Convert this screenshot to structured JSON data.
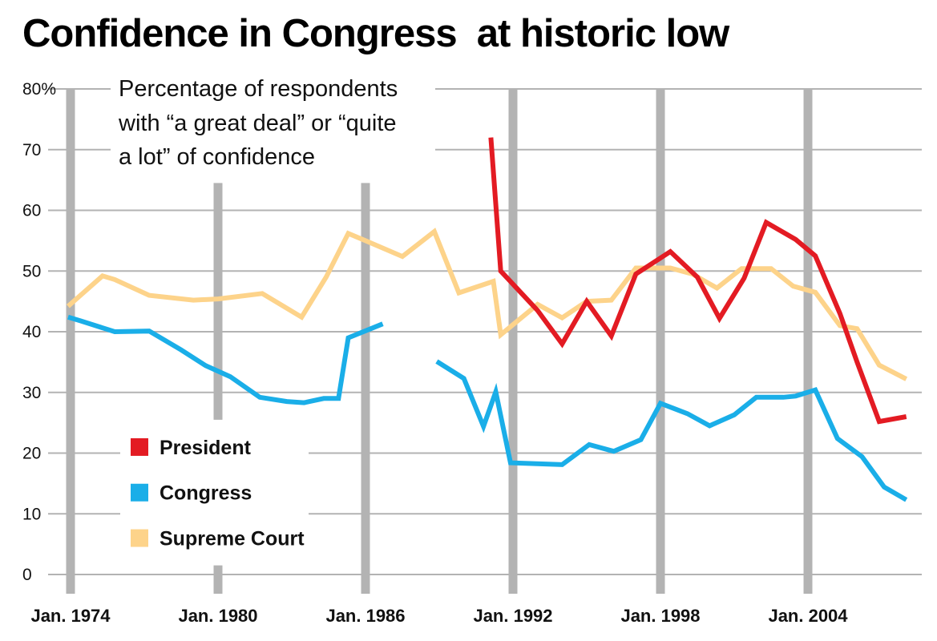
{
  "chart_data": {
    "type": "line",
    "title": "Confidence in Congress  at historic low",
    "subtitle_lines": [
      "Percentage of respondents",
      "with “a great deal” or “quite",
      "a lot” of confidence"
    ],
    "ylim": [
      0,
      80
    ],
    "y_ticks": [
      "80%",
      "70",
      "60",
      "50",
      "40",
      "30",
      "20",
      "10",
      "0"
    ],
    "x_ticks": [
      {
        "label": "Jan. 1974",
        "year": 1974
      },
      {
        "label": "Jan. 1980",
        "year": 1980
      },
      {
        "label": "Jan. 1986",
        "year": 1986
      },
      {
        "label": "Jan. 1992",
        "year": 1992
      },
      {
        "label": "Jan. 1998",
        "year": 1998
      },
      {
        "label": "Jan. 2004",
        "year": 2004
      }
    ],
    "legend_position": "bottom-left",
    "series": [
      {
        "name": "President",
        "color": "#e31b23",
        "points": [
          [
            1991.1,
            72
          ],
          [
            1991.5,
            50
          ],
          [
            1993.0,
            43.5
          ],
          [
            1994.0,
            38
          ],
          [
            1995.0,
            45
          ],
          [
            1996.0,
            39.3
          ],
          [
            1997.0,
            49.5
          ],
          [
            1998.4,
            53.2
          ],
          [
            1999.5,
            49
          ],
          [
            2000.4,
            42.2
          ],
          [
            2001.4,
            48.8
          ],
          [
            2002.3,
            58
          ],
          [
            2003.5,
            55.2
          ],
          [
            2004.3,
            52.5
          ],
          [
            2005.3,
            43
          ],
          [
            2006.0,
            35
          ],
          [
            2006.9,
            25.2
          ],
          [
            2008.0,
            26
          ]
        ]
      },
      {
        "name": "Supreme Court",
        "color": "#fdd38a",
        "points": [
          [
            1973.9,
            44.2
          ],
          [
            1975.3,
            49.2
          ],
          [
            1975.8,
            48.6
          ],
          [
            1977.2,
            46
          ],
          [
            1979.0,
            45.2
          ],
          [
            1980.0,
            45.4
          ],
          [
            1981.8,
            46.3
          ],
          [
            1983.4,
            42.4
          ],
          [
            1984.4,
            49
          ],
          [
            1985.3,
            56.2
          ],
          [
            1986.0,
            55
          ],
          [
            1987.5,
            52.4
          ],
          [
            1988.8,
            56.5
          ],
          [
            1989.8,
            46.4
          ],
          [
            1991.2,
            48.3
          ],
          [
            1991.5,
            39.5
          ],
          [
            1993.0,
            44.5
          ],
          [
            1994.0,
            42.3
          ],
          [
            1995.0,
            45
          ],
          [
            1996.0,
            45.2
          ],
          [
            1997.0,
            50.5
          ],
          [
            1998.4,
            50.5
          ],
          [
            1999.3,
            49.5
          ],
          [
            2000.3,
            47.2
          ],
          [
            2001.3,
            50.4
          ],
          [
            2002.5,
            50.4
          ],
          [
            2003.4,
            47.5
          ],
          [
            2004.3,
            46.5
          ],
          [
            2005.3,
            41
          ],
          [
            2006.0,
            40.5
          ],
          [
            2006.9,
            34.5
          ],
          [
            2008.0,
            32.2
          ]
        ]
      },
      {
        "name": "Congress",
        "color": "#1aaee8",
        "points": [
          [
            1973.9,
            42.4
          ],
          [
            1974.4,
            41.8
          ],
          [
            1975.8,
            40
          ],
          [
            1977.2,
            40.1
          ],
          [
            1978.5,
            37
          ],
          [
            1979.5,
            34.4
          ],
          [
            1980.5,
            32.6
          ],
          [
            1981.7,
            29.2
          ],
          [
            1982.8,
            28.5
          ],
          [
            1983.5,
            28.3
          ],
          [
            1984.3,
            29
          ],
          [
            1984.9,
            29
          ],
          [
            1985.3,
            39
          ],
          [
            1986.7,
            41.3
          ],
          [
            null,
            null
          ],
          [
            1988.9,
            35.1
          ],
          [
            1990.0,
            32.3
          ],
          [
            1990.8,
            24.4
          ],
          [
            1991.3,
            30.1
          ],
          [
            1991.9,
            18.4
          ],
          [
            1994.0,
            18.1
          ],
          [
            1995.1,
            21.4
          ],
          [
            1996.1,
            20.3
          ],
          [
            1997.2,
            22.2
          ],
          [
            1998.0,
            28.2
          ],
          [
            1999.1,
            26.5
          ],
          [
            2000.0,
            24.5
          ],
          [
            2001.0,
            26.3
          ],
          [
            2001.9,
            29.2
          ],
          [
            2003.0,
            29.2
          ],
          [
            2003.5,
            29.4
          ],
          [
            2004.3,
            30.4
          ],
          [
            2005.2,
            22.4
          ],
          [
            2006.2,
            19.4
          ],
          [
            2007.1,
            14.4
          ],
          [
            2008.0,
            12.3
          ]
        ]
      }
    ]
  }
}
